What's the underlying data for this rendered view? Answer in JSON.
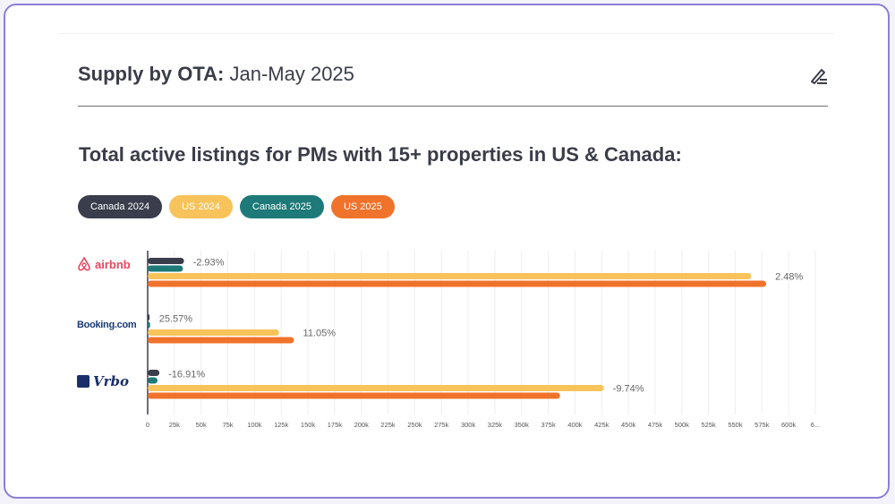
{
  "header": {
    "title_bold": "Supply by OTA:",
    "title_rest": " Jan-May 2025"
  },
  "icons": {
    "edit": "edit-pencil-icon"
  },
  "colors": {
    "canada_2024": "#3a3d4c",
    "us_2024": "#f7c35a",
    "canada_2025": "#1d7a78",
    "us_2025": "#f0732c",
    "card_border": "#8b7fd6"
  },
  "logos": {
    "airbnb": "airbnb",
    "booking": "Booking.com",
    "vrbo": "Vrbo"
  },
  "chart_data": {
    "type": "bar",
    "orientation": "horizontal",
    "title": "Total active listings for PMs with 15+ properties in US & Canada:",
    "legend_position": "top-left",
    "categories": [
      "airbnb",
      "Booking.com",
      "Vrbo"
    ],
    "series": [
      {
        "name": "Canada 2024",
        "values": [
          34000,
          1800,
          11000
        ]
      },
      {
        "name": "Canada 2025",
        "values": [
          33000,
          2300,
          9200
        ]
      },
      {
        "name": "US 2024",
        "values": [
          565000,
          123000,
          427000
        ]
      },
      {
        "name": "US 2025",
        "values": [
          579000,
          137000,
          386000
        ]
      }
    ],
    "annotations": [
      {
        "category": "airbnb",
        "group": "Canada",
        "text": "-2.93%"
      },
      {
        "category": "airbnb",
        "group": "US",
        "text": "2.48%"
      },
      {
        "category": "Booking.com",
        "group": "Canada",
        "text": "25.57%"
      },
      {
        "category": "Booking.com",
        "group": "US",
        "text": "11.05%"
      },
      {
        "category": "Vrbo",
        "group": "Canada",
        "text": "-16.91%"
      },
      {
        "category": "Vrbo",
        "group": "US",
        "text": "-9.74%"
      }
    ],
    "xlim": [
      0,
      625000
    ],
    "x_ticks": [
      "0",
      "25k",
      "50k",
      "75k",
      "100k",
      "125k",
      "150k",
      "175k",
      "200k",
      "225k",
      "250k",
      "275k",
      "300k",
      "325k",
      "350k",
      "375k",
      "400k",
      "425k",
      "450k",
      "475k",
      "500k",
      "525k",
      "550k",
      "575k",
      "600k",
      "6..."
    ],
    "grid": true
  }
}
